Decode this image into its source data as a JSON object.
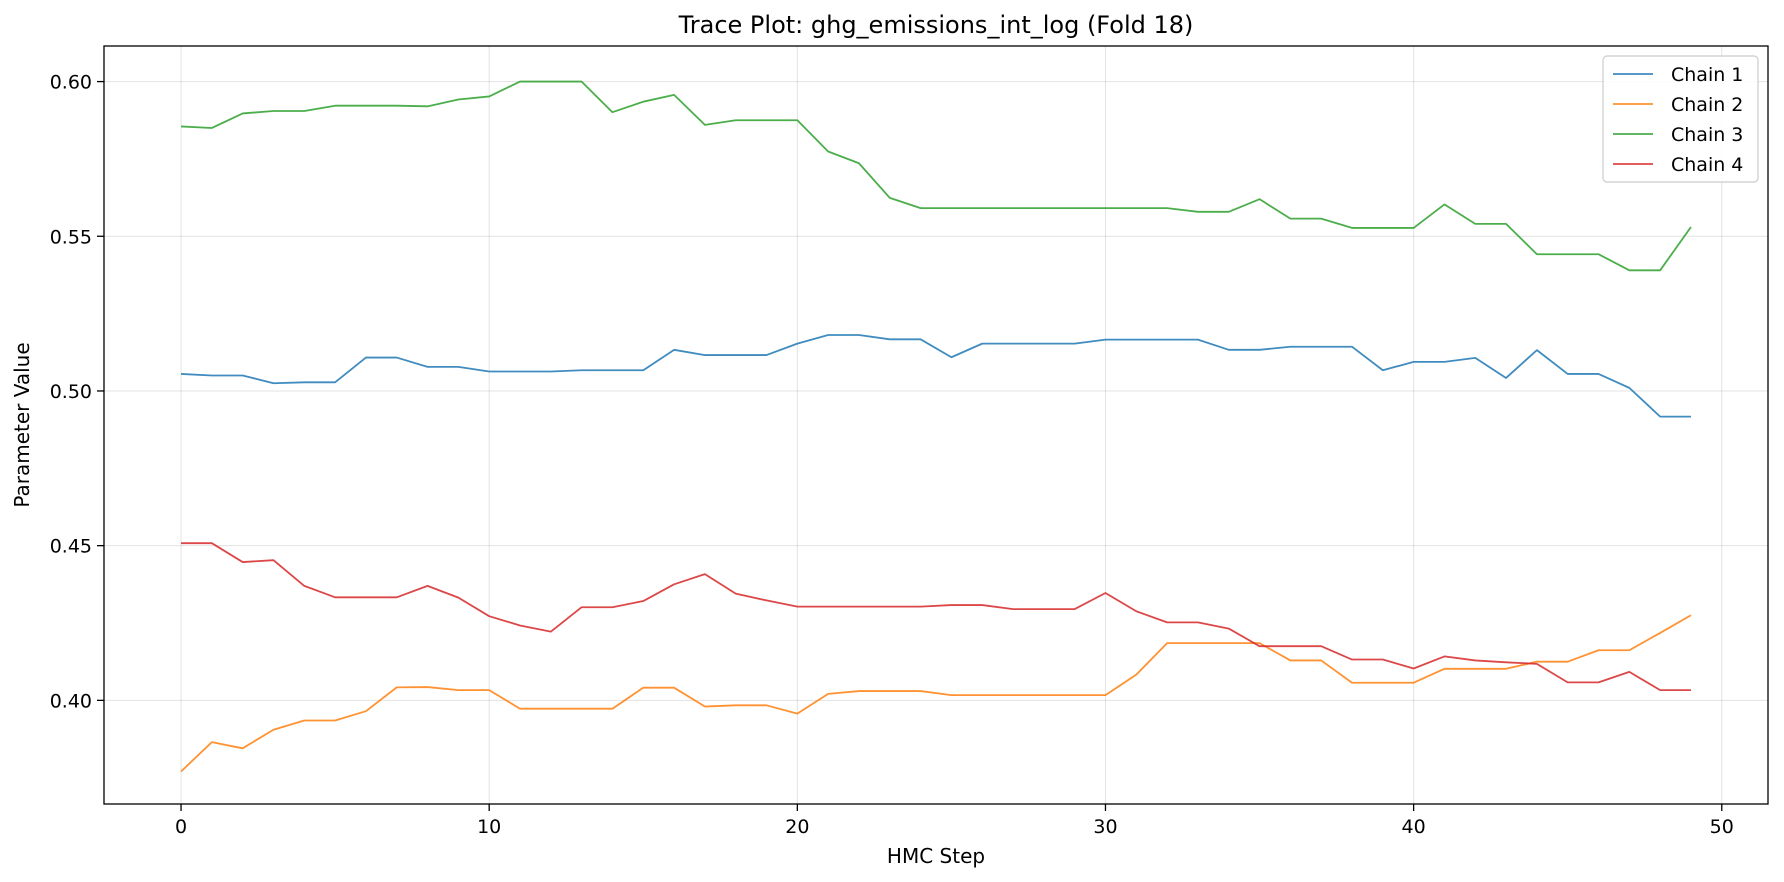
{
  "chart_data": {
    "type": "line",
    "title": "Trace Plot: ghg_emissions_int_log (Fold 18)",
    "xlabel": "HMC Step",
    "ylabel": "Parameter Value",
    "xlim": [
      -2.5,
      51.5
    ],
    "ylim": [
      0.3665,
      0.6115
    ],
    "xticks": [
      0,
      10,
      20,
      30,
      40,
      50
    ],
    "yticks": [
      0.4,
      0.45,
      0.5,
      0.55,
      0.6
    ],
    "ytick_labels": [
      "0.40",
      "0.45",
      "0.50",
      "0.55",
      "0.60"
    ],
    "grid": true,
    "legend_position": "top-right",
    "x": [
      0,
      1,
      2,
      3,
      4,
      5,
      6,
      7,
      8,
      9,
      10,
      11,
      12,
      13,
      14,
      15,
      16,
      17,
      18,
      19,
      20,
      21,
      22,
      23,
      24,
      25,
      26,
      27,
      28,
      29,
      30,
      31,
      32,
      33,
      34,
      35,
      36,
      37,
      38,
      39,
      40,
      41,
      42,
      43,
      44,
      45,
      46,
      47,
      48,
      49
    ],
    "series": [
      {
        "name": "Chain 1",
        "color": "#1f77b4",
        "values": [
          0.5055,
          0.505,
          0.505,
          0.5025,
          0.5028,
          0.5028,
          0.5108,
          0.5108,
          0.5078,
          0.5078,
          0.5063,
          0.5063,
          0.5063,
          0.5067,
          0.5067,
          0.5067,
          0.5133,
          0.5116,
          0.5116,
          0.5116,
          0.5153,
          0.5181,
          0.5181,
          0.5167,
          0.5167,
          0.5109,
          0.5153,
          0.5153,
          0.5153,
          0.5153,
          0.5166,
          0.5166,
          0.5166,
          0.5166,
          0.5133,
          0.5133,
          0.5143,
          0.5143,
          0.5143,
          0.5067,
          0.5094,
          0.5094,
          0.5107,
          0.5042,
          0.5132,
          0.5055,
          0.5055,
          0.501,
          0.4917,
          0.4917
        ]
      },
      {
        "name": "Chain 2",
        "color": "#ff7f0e",
        "values": [
          0.377,
          0.3865,
          0.3845,
          0.3905,
          0.3935,
          0.3935,
          0.3965,
          0.4042,
          0.4043,
          0.4033,
          0.4033,
          0.3973,
          0.3973,
          0.3973,
          0.3973,
          0.4041,
          0.4041,
          0.398,
          0.3984,
          0.3984,
          0.3957,
          0.4021,
          0.403,
          0.403,
          0.403,
          0.4017,
          0.4017,
          0.4017,
          0.4017,
          0.4017,
          0.4017,
          0.4083,
          0.4185,
          0.4185,
          0.4185,
          0.4185,
          0.4129,
          0.4129,
          0.4057,
          0.4057,
          0.4057,
          0.4102,
          0.4102,
          0.4102,
          0.4125,
          0.4125,
          0.4162,
          0.4162,
          0.4218,
          0.4275
        ]
      },
      {
        "name": "Chain 3",
        "color": "#2ca02c",
        "values": [
          0.5855,
          0.585,
          0.5897,
          0.5905,
          0.5905,
          0.5922,
          0.5922,
          0.5922,
          0.592,
          0.5942,
          0.5952,
          0.6,
          0.6,
          0.6,
          0.5901,
          0.5935,
          0.5957,
          0.586,
          0.5875,
          0.5875,
          0.5875,
          0.5774,
          0.5736,
          0.5624,
          0.5591,
          0.5591,
          0.5591,
          0.5591,
          0.5591,
          0.5591,
          0.5591,
          0.5591,
          0.5591,
          0.5579,
          0.5579,
          0.562,
          0.5557,
          0.5557,
          0.5527,
          0.5527,
          0.5527,
          0.5603,
          0.554,
          0.554,
          0.5442,
          0.5442,
          0.5442,
          0.539,
          0.539,
          0.553
        ]
      },
      {
        "name": "Chain 4",
        "color": "#d62728",
        "values": [
          0.4508,
          0.4508,
          0.4447,
          0.4453,
          0.437,
          0.4333,
          0.4333,
          0.4333,
          0.437,
          0.4332,
          0.4272,
          0.4242,
          0.4222,
          0.4301,
          0.4301,
          0.4321,
          0.4375,
          0.4408,
          0.4345,
          0.4323,
          0.4303,
          0.4303,
          0.4303,
          0.4303,
          0.4303,
          0.4308,
          0.4308,
          0.4295,
          0.4295,
          0.4295,
          0.4347,
          0.4288,
          0.4252,
          0.4252,
          0.4232,
          0.4175,
          0.4175,
          0.4175,
          0.4132,
          0.4132,
          0.4103,
          0.4142,
          0.4129,
          0.4123,
          0.4118,
          0.4058,
          0.4058,
          0.4092,
          0.4033,
          0.4033
        ]
      }
    ]
  }
}
